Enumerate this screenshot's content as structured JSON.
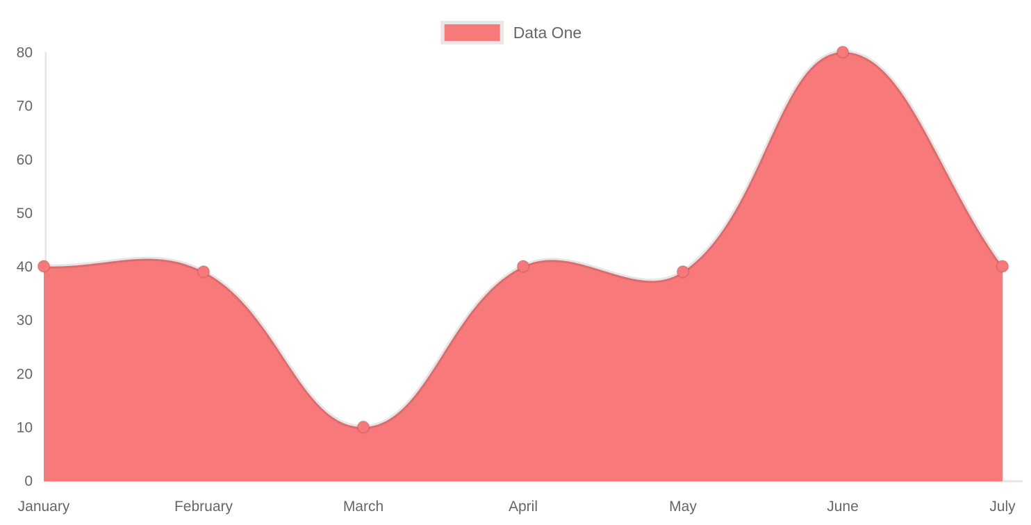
{
  "chart_data": {
    "type": "area",
    "title": "",
    "categories": [
      "January",
      "February",
      "March",
      "April",
      "May",
      "June",
      "July"
    ],
    "series": [
      {
        "name": "Data One",
        "values": [
          40,
          39,
          10,
          40,
          39,
          80,
          40
        ]
      }
    ],
    "xlabel": "",
    "ylabel": "",
    "ylim": [
      0,
      80
    ],
    "ytick_step": 10,
    "yticks": [
      0,
      10,
      20,
      30,
      40,
      50,
      60,
      70,
      80
    ],
    "grid": "off",
    "legend_position": "top-center",
    "line_tension": 0.4,
    "colors": {
      "fill": "#f87979",
      "line": "rgba(0,0,0,0.1)",
      "point_fill": "#f87979",
      "point_border": "rgba(0,0,0,0.1)",
      "axis_line": "#e5e5e5",
      "tick_text": "#666666",
      "legend_text": "#666666",
      "legend_swatch_border": "#e8e8e8"
    }
  },
  "legend": {
    "items": [
      {
        "label": "Data One",
        "swatch_color": "#f87979"
      }
    ]
  }
}
